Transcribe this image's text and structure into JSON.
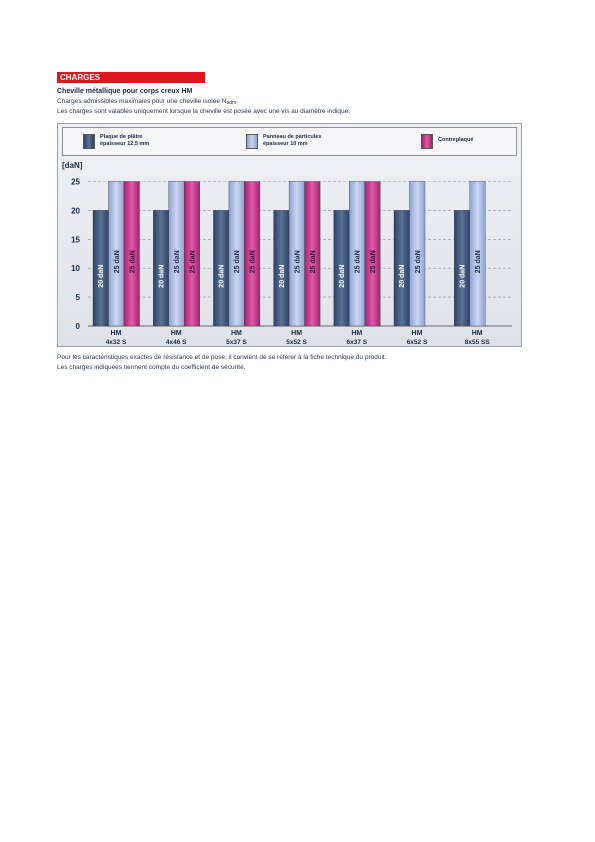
{
  "header": {
    "section_label": "CHARGES"
  },
  "intro": {
    "subtitle": "Cheville métallique pour corps creux HM",
    "description_line1": "Charges admissibles maximales pour une cheville isolée N",
    "description_line1_subscript": "adm",
    "description_line1_end": ".",
    "description_line2": "Les charges sont valables uniquement lorsque la cheville est posée avec une vis au diamètre indiqué."
  },
  "legend": [
    {
      "line1": "Plaque de plâtre",
      "line2": "épaisseur 12,5 mm"
    },
    {
      "line1": "Panneau de particules",
      "line2": "épaisseur 10 mm"
    },
    {
      "line1": "Contreplaqué",
      "line2": ""
    }
  ],
  "chart_data": {
    "type": "bar",
    "ylabel": "[daN]",
    "ylim": [
      0,
      25
    ],
    "yticks": [
      0,
      5,
      10,
      15,
      20,
      25
    ],
    "grid": true,
    "categories": [
      [
        "HM",
        "4x32 S"
      ],
      [
        "HM",
        "4x46 S"
      ],
      [
        "HM",
        "5x37 S"
      ],
      [
        "HM",
        "5x52 S"
      ],
      [
        "HM",
        "6x37 S"
      ],
      [
        "HM",
        "6x52 S"
      ],
      [
        "HM",
        "8x55 SS"
      ]
    ],
    "series": [
      {
        "name": "Plaque de plâtre épaisseur 12,5 mm",
        "color": "#3d5578",
        "values": [
          20,
          20,
          20,
          20,
          20,
          20,
          20
        ],
        "labels": [
          "20 daN",
          "20 daN",
          "20 daN",
          "20 daN",
          "20 daN",
          "20 daN",
          "20 daN"
        ]
      },
      {
        "name": "Panneau de particules épaisseur 10 mm",
        "color": "#a8b8e0",
        "values": [
          25,
          25,
          25,
          25,
          25,
          25,
          25
        ],
        "labels": [
          "25 daN",
          "25 daN",
          "25 daN",
          "25 daN",
          "25 daN",
          "25 daN",
          "25 daN"
        ]
      },
      {
        "name": "Contreplaqué",
        "color": "#c8358a",
        "values": [
          25,
          25,
          25,
          25,
          25,
          null,
          null
        ],
        "labels": [
          "25 daN",
          "25 daN",
          "25 daN",
          "25 daN",
          "25 daN",
          null,
          null
        ]
      }
    ]
  },
  "footnotes": {
    "line1": "Pour les caractéristiques exactes de résistance et de pose, il convient de se référer à la fiche technique du produit.",
    "line2": "Les charges indiquées tiennent compte du coefficient de sécurité."
  }
}
